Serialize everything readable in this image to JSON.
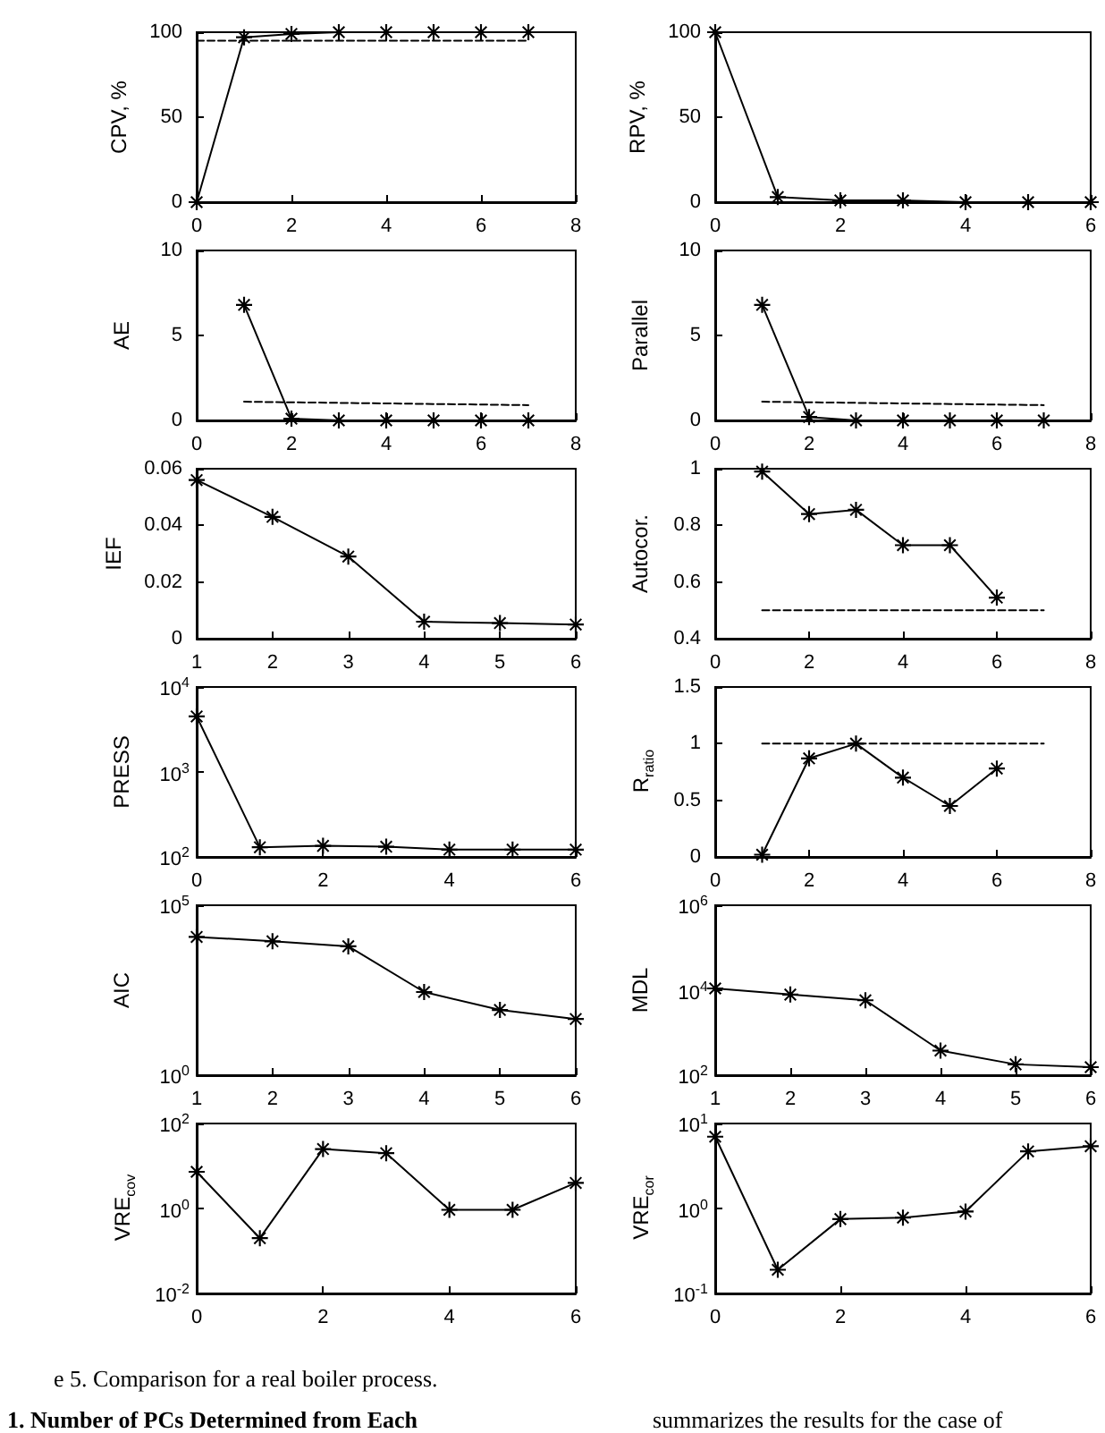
{
  "chart_data": [
    {
      "type": "line",
      "ylabel": "CPV, %",
      "xlim": [
        0,
        8
      ],
      "xticks": [
        0,
        2,
        4,
        6,
        8
      ],
      "ylim": [
        0,
        100
      ],
      "yticks": [
        0,
        50,
        100
      ],
      "marker": "star",
      "series": [
        {
          "color": "#000000",
          "x": [
            0,
            1,
            2,
            3,
            4,
            5,
            6,
            7
          ],
          "values": [
            0,
            97,
            99,
            100,
            100,
            100,
            100,
            100
          ]
        },
        {
          "color": "#000000",
          "x": [
            0,
            7
          ],
          "values": [
            95,
            95
          ],
          "marker": "none",
          "line_style": "dashed"
        }
      ]
    },
    {
      "type": "line",
      "ylabel": "RPV, %",
      "xlim": [
        0,
        6
      ],
      "xticks": [
        0,
        2,
        4,
        6
      ],
      "ylim": [
        0,
        100
      ],
      "yticks": [
        0,
        50,
        100
      ],
      "marker": "star",
      "series": [
        {
          "color": "#000000",
          "x": [
            0,
            1,
            2,
            3,
            4,
            5,
            6
          ],
          "values": [
            100,
            3,
            1,
            1,
            0,
            0,
            0
          ]
        }
      ]
    },
    {
      "type": "line",
      "ylabel": "AE",
      "xlim": [
        0,
        8
      ],
      "xticks": [
        0,
        2,
        4,
        6,
        8
      ],
      "ylim": [
        0,
        10
      ],
      "yticks": [
        0,
        5,
        10
      ],
      "marker": "star",
      "series": [
        {
          "color": "#000000",
          "x": [
            1,
            2,
            3,
            4,
            5,
            6,
            7
          ],
          "values": [
            6.8,
            0.1,
            0,
            0,
            0,
            0,
            0
          ]
        },
        {
          "color": "#000000",
          "x": [
            1,
            7
          ],
          "values": [
            1.1,
            0.9
          ],
          "marker": "none",
          "line_style": "dashed"
        }
      ]
    },
    {
      "type": "line",
      "ylabel": "Parallel",
      "xlim": [
        0,
        8
      ],
      "xticks": [
        0,
        2,
        4,
        6,
        8
      ],
      "ylim": [
        0,
        10
      ],
      "yticks": [
        0,
        5,
        10
      ],
      "marker": "star",
      "series": [
        {
          "color": "#000000",
          "x": [
            1,
            2,
            3,
            4,
            5,
            6,
            7
          ],
          "values": [
            6.8,
            0.2,
            0,
            0,
            0,
            0,
            0
          ]
        },
        {
          "color": "#000000",
          "x": [
            1,
            7
          ],
          "values": [
            1.1,
            0.9
          ],
          "marker": "none",
          "line_style": "dashed"
        }
      ]
    },
    {
      "type": "line",
      "ylabel": "IEF",
      "xlim": [
        1,
        6
      ],
      "xticks": [
        1,
        2,
        3,
        4,
        5,
        6
      ],
      "ylim": [
        0,
        0.06
      ],
      "yticks": [
        0,
        0.02,
        0.04,
        0.06
      ],
      "marker": "star",
      "series": [
        {
          "color": "#000000",
          "x": [
            1,
            2,
            3,
            4,
            5,
            6
          ],
          "values": [
            0.056,
            0.043,
            0.029,
            0.006,
            0.0055,
            0.005
          ]
        }
      ]
    },
    {
      "type": "line",
      "ylabel": "Autocor.",
      "xlim": [
        0,
        8
      ],
      "xticks": [
        0,
        2,
        4,
        6,
        8
      ],
      "ylim": [
        0.4,
        1
      ],
      "yticks": [
        0.4,
        0.6,
        0.8,
        1
      ],
      "marker": "star",
      "series": [
        {
          "color": "#000000",
          "x": [
            1,
            2,
            3,
            4,
            5,
            6
          ],
          "values": [
            0.99,
            0.84,
            0.855,
            0.73,
            0.73,
            0.545
          ]
        },
        {
          "color": "#000000",
          "x": [
            1,
            7
          ],
          "values": [
            0.5,
            0.5
          ],
          "marker": "none",
          "line_style": "dashed"
        }
      ]
    },
    {
      "type": "line",
      "ylabel": "PRESS",
      "log": "y",
      "xlim": [
        0,
        6
      ],
      "xticks": [
        0,
        2,
        4,
        6
      ],
      "ylim": [
        100,
        10000
      ],
      "yticks": [
        {
          "value": 100,
          "label": "10$^{2}$"
        },
        {
          "value": 1000,
          "label": "10$^{3}$"
        },
        {
          "value": 10000,
          "label": "10$^{4}$"
        }
      ],
      "marker": "star",
      "series": [
        {
          "color": "#000000",
          "x": [
            0,
            1,
            2,
            3,
            4,
            5,
            6
          ],
          "values": [
            4500,
            130,
            135,
            132,
            122,
            122,
            122
          ]
        }
      ]
    },
    {
      "type": "line",
      "ylabel": "R$_{ratio}$",
      "xlim": [
        0,
        8
      ],
      "xticks": [
        0,
        2,
        4,
        6,
        8
      ],
      "ylim": [
        0,
        1.5
      ],
      "yticks": [
        0,
        0.5,
        1,
        1.5
      ],
      "marker": "star",
      "series": [
        {
          "color": "#000000",
          "x": [
            1,
            2,
            3,
            4,
            5,
            6
          ],
          "values": [
            0.02,
            0.87,
            1.0,
            0.7,
            0.45,
            0.78
          ]
        },
        {
          "color": "#000000",
          "x": [
            1,
            7
          ],
          "values": [
            1,
            1
          ],
          "marker": "none",
          "line_style": "dashed"
        }
      ]
    },
    {
      "type": "line",
      "ylabel": "AIC",
      "log": "y",
      "xlim": [
        1,
        6
      ],
      "xticks": [
        1,
        2,
        3,
        4,
        5,
        6
      ],
      "ylim": [
        1,
        100000
      ],
      "yticks": [
        {
          "value": 1,
          "label": "10$^{0}$"
        },
        {
          "value": 100000,
          "label": "10$^{5}$"
        }
      ],
      "marker": "star",
      "series": [
        {
          "color": "#000000",
          "x": [
            1,
            2,
            3,
            4,
            5,
            6
          ],
          "values": [
            11700,
            8700,
            6200,
            280,
            83,
            45
          ]
        }
      ]
    },
    {
      "type": "line",
      "ylabel": "MDL",
      "log": "y",
      "xlim": [
        1,
        6
      ],
      "xticks": [
        1,
        2,
        3,
        4,
        5,
        6
      ],
      "ylim": [
        100,
        1000000
      ],
      "yticks": [
        {
          "value": 100,
          "label": "10$^{2}$"
        },
        {
          "value": 10000,
          "label": "10$^{4}$"
        },
        {
          "value": 1000000,
          "label": "10$^{6}$"
        }
      ],
      "marker": "star",
      "series": [
        {
          "color": "#000000",
          "x": [
            1,
            2,
            3,
            4,
            5,
            6
          ],
          "values": [
            11000,
            7900,
            5800,
            380,
            180,
            155
          ]
        }
      ]
    },
    {
      "type": "line",
      "ylabel": "VRE$_{cov}$",
      "log": "y",
      "xlim": [
        0,
        6
      ],
      "xticks": [
        0,
        2,
        4,
        6
      ],
      "ylim": [
        0.01,
        100
      ],
      "yticks": [
        {
          "value": 0.01,
          "label": "10$^{-2}$"
        },
        {
          "value": 1,
          "label": "10$^{0}$"
        },
        {
          "value": 100,
          "label": "10$^{2}$"
        }
      ],
      "marker": "star",
      "series": [
        {
          "color": "#000000",
          "x": [
            0,
            1,
            2,
            3,
            4,
            5,
            6
          ],
          "values": [
            7.3,
            0.2,
            25,
            20,
            0.93,
            0.93,
            4
          ]
        }
      ]
    },
    {
      "type": "line",
      "ylabel": "VRE$_{cor}$",
      "log": "y",
      "xlim": [
        0,
        6
      ],
      "xticks": [
        0,
        2,
        4,
        6
      ],
      "ylim": [
        0.1,
        10
      ],
      "yticks": [
        {
          "value": 0.1,
          "label": "10$^{-1}$"
        },
        {
          "value": 1,
          "label": "10$^{0}$"
        },
        {
          "value": 10,
          "label": "10$^{1}$"
        }
      ],
      "marker": "star",
      "series": [
        {
          "color": "#000000",
          "x": [
            0,
            1,
            2,
            3,
            4,
            5,
            6
          ],
          "values": [
            7,
            0.19,
            0.75,
            0.78,
            0.92,
            4.7,
            5.4
          ]
        }
      ]
    },
    {
      "type": "other",
      "annotations": [
        "e 5. Comparison for a real boiler process.",
        "1. Number of PCs Determined from Each",
        "summarizes the results for the case of"
      ]
    }
  ]
}
